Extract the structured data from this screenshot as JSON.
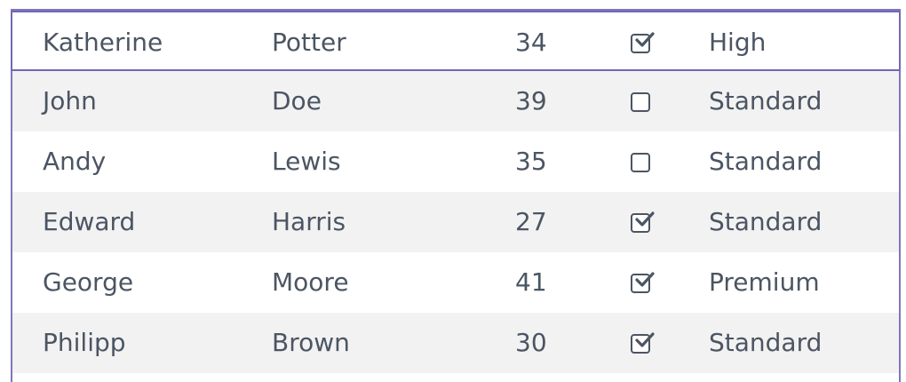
{
  "table": {
    "rows": [
      {
        "first_name": "Katherine",
        "last_name": "Potter",
        "age": "34",
        "checked": true,
        "plan": "High",
        "selected": true
      },
      {
        "first_name": "John",
        "last_name": "Doe",
        "age": "39",
        "checked": false,
        "plan": "Standard",
        "selected": false
      },
      {
        "first_name": "Andy",
        "last_name": "Lewis",
        "age": "35",
        "checked": false,
        "plan": "Standard",
        "selected": false
      },
      {
        "first_name": "Edward",
        "last_name": "Harris",
        "age": "27",
        "checked": true,
        "plan": "Standard",
        "selected": false
      },
      {
        "first_name": "George",
        "last_name": "Moore",
        "age": "41",
        "checked": true,
        "plan": "Premium",
        "selected": false
      },
      {
        "first_name": "Philipp",
        "last_name": "Brown",
        "age": "30",
        "checked": true,
        "plan": "Standard",
        "selected": false
      }
    ]
  },
  "colors": {
    "selection_border": "#6f68b7",
    "frame_border": "#7c78b8",
    "alt_row": "#f2f2f2",
    "text": "#4b5563"
  }
}
